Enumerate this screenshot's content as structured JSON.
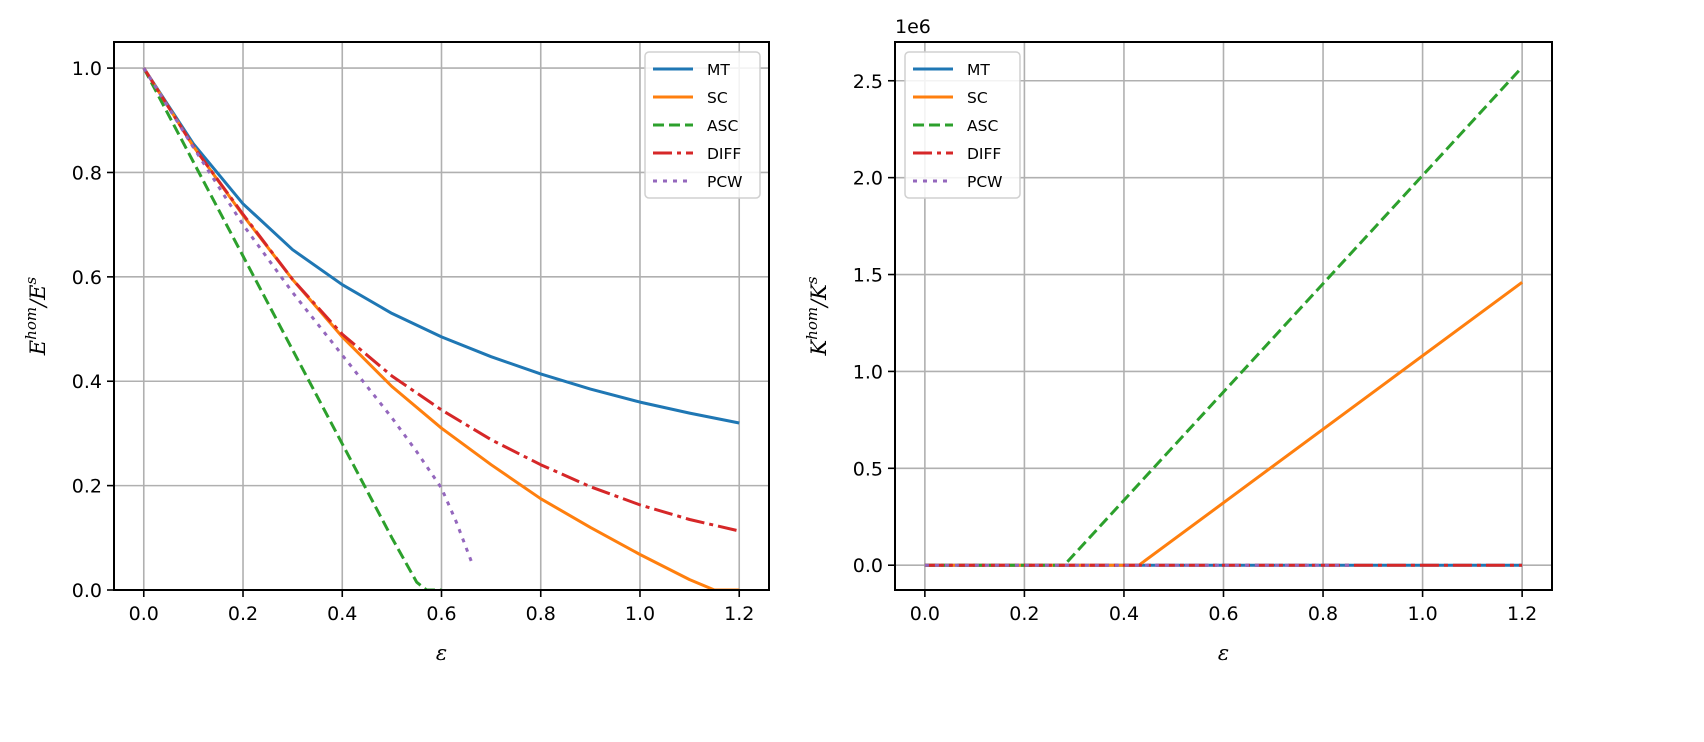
{
  "chart_data": [
    {
      "type": "line",
      "title": "",
      "xlabel": "ε",
      "ylabel": "E^hom/E^s",
      "ylabel_parts": {
        "base": "E",
        "sup1": "hom",
        "slash": "/E",
        "sup2": "s"
      },
      "xlim": [
        -0.06,
        1.26
      ],
      "ylim": [
        0.0,
        1.05
      ],
      "xticks": [
        0.0,
        0.2,
        0.4,
        0.6,
        0.8,
        1.0,
        1.2
      ],
      "xtick_labels": [
        "0.0",
        "0.2",
        "0.4",
        "0.6",
        "0.8",
        "1.0",
        "1.2"
      ],
      "yticks": [
        0.0,
        0.2,
        0.4,
        0.6,
        0.8,
        1.0
      ],
      "ytick_labels": [
        "0.0",
        "0.2",
        "0.4",
        "0.6",
        "0.8",
        "1.0"
      ],
      "grid": true,
      "legend": "top-right",
      "series": [
        {
          "name": "MT",
          "color": "#1f77b4",
          "style": "solid",
          "x": [
            0.0,
            0.1,
            0.2,
            0.3,
            0.4,
            0.5,
            0.6,
            0.7,
            0.8,
            0.9,
            1.0,
            1.1,
            1.2
          ],
          "y": [
            1.0,
            0.855,
            0.74,
            0.652,
            0.585,
            0.53,
            0.485,
            0.447,
            0.414,
            0.385,
            0.36,
            0.339,
            0.32
          ]
        },
        {
          "name": "SC",
          "color": "#ff7f0e",
          "style": "solid",
          "x": [
            0.0,
            0.1,
            0.2,
            0.3,
            0.4,
            0.5,
            0.6,
            0.7,
            0.8,
            0.9,
            1.0,
            1.1,
            1.15,
            1.2
          ],
          "y": [
            1.0,
            0.85,
            0.718,
            0.595,
            0.485,
            0.39,
            0.31,
            0.24,
            0.175,
            0.12,
            0.068,
            0.02,
            0.0,
            0.0
          ]
        },
        {
          "name": "ASC",
          "color": "#2ca02c",
          "style": "dashed",
          "x": [
            0.0,
            0.1,
            0.2,
            0.3,
            0.4,
            0.5,
            0.55,
            0.57,
            0.6
          ],
          "y": [
            1.0,
            0.82,
            0.64,
            0.46,
            0.28,
            0.1,
            0.015,
            0.0,
            0.0
          ]
        },
        {
          "name": "DIFF",
          "color": "#d62728",
          "style": "dashdot",
          "x": [
            0.0,
            0.1,
            0.2,
            0.3,
            0.4,
            0.5,
            0.6,
            0.7,
            0.8,
            0.9,
            1.0,
            1.1,
            1.2
          ],
          "y": [
            1.0,
            0.85,
            0.72,
            0.595,
            0.49,
            0.41,
            0.345,
            0.288,
            0.24,
            0.198,
            0.163,
            0.135,
            0.113
          ]
        },
        {
          "name": "PCW",
          "color": "#9467bd",
          "style": "dotted",
          "x": [
            0.0,
            0.1,
            0.2,
            0.3,
            0.4,
            0.5,
            0.55,
            0.6,
            0.63,
            0.66
          ],
          "y": [
            1.0,
            0.848,
            0.7,
            0.57,
            0.45,
            0.33,
            0.265,
            0.195,
            0.13,
            0.055
          ]
        }
      ]
    },
    {
      "type": "line",
      "title": "",
      "xlabel": "ε",
      "ylabel": "K^hom/K^s",
      "ylabel_parts": {
        "base": "K",
        "sup1": "hom",
        "slash": "/K",
        "sup2": "s"
      },
      "offset_label": "1e6",
      "xlim": [
        -0.06,
        1.26
      ],
      "ylim": [
        -0.128,
        2.7
      ],
      "xticks": [
        0.0,
        0.2,
        0.4,
        0.6,
        0.8,
        1.0,
        1.2
      ],
      "xtick_labels": [
        "0.0",
        "0.2",
        "0.4",
        "0.6",
        "0.8",
        "1.0",
        "1.2"
      ],
      "yticks": [
        0.0,
        0.5,
        1.0,
        1.5,
        2.0,
        2.5
      ],
      "ytick_labels": [
        "0.0",
        "0.5",
        "1.0",
        "1.5",
        "2.0",
        "2.5"
      ],
      "grid": true,
      "legend": "top-left",
      "series": [
        {
          "name": "MT",
          "color": "#1f77b4",
          "style": "solid",
          "x": [
            0.0,
            1.2
          ],
          "y": [
            0.0,
            0.0
          ]
        },
        {
          "name": "SC",
          "color": "#ff7f0e",
          "style": "solid",
          "x": [
            0.0,
            0.43,
            1.2
          ],
          "y": [
            0.0,
            0.0,
            1.46
          ]
        },
        {
          "name": "ASC",
          "color": "#2ca02c",
          "style": "dashed",
          "x": [
            0.0,
            0.28,
            1.2
          ],
          "y": [
            0.0,
            0.0,
            2.57
          ]
        },
        {
          "name": "DIFF",
          "color": "#d62728",
          "style": "dashdot",
          "x": [
            0.0,
            1.2
          ],
          "y": [
            0.0,
            0.0
          ]
        },
        {
          "name": "PCW",
          "color": "#9467bd",
          "style": "dotted",
          "x": [
            0.0,
            0.86
          ],
          "y": [
            0.0,
            0.0
          ]
        }
      ]
    }
  ]
}
